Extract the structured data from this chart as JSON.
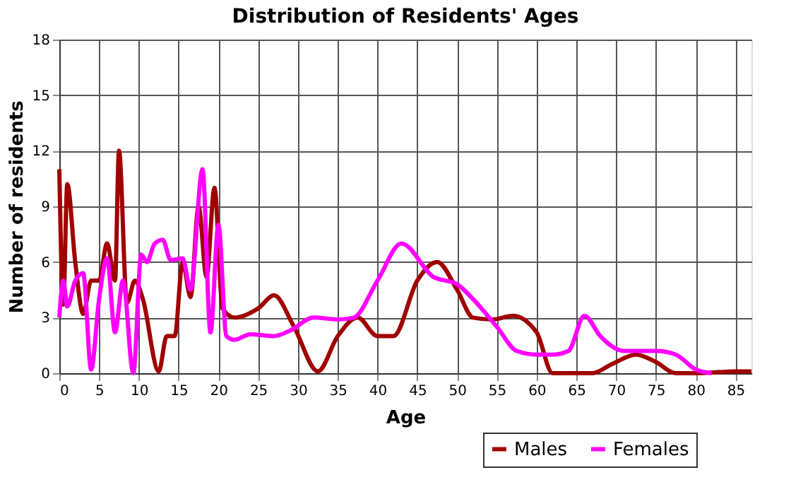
{
  "chart_data": {
    "type": "line",
    "title": "Distribution of Residents' Ages",
    "xlabel": "Age",
    "ylabel": "Number of residents",
    "xlim": [
      0,
      87
    ],
    "xticks": [
      0,
      5,
      10,
      15,
      20,
      25,
      30,
      35,
      40,
      45,
      50,
      55,
      60,
      65,
      70,
      75,
      80,
      85
    ],
    "ylim": [
      0,
      18
    ],
    "yticks": [
      0,
      3,
      6,
      9,
      12,
      15,
      18
    ],
    "grid": true,
    "legend": "bottom right",
    "line_style": "solid",
    "marker": "none",
    "series": [
      {
        "name": "Males",
        "color": "#a00000",
        "x": [
          0,
          0.5,
          1,
          2,
          3,
          4,
          5,
          6,
          7,
          7.5,
          8.5,
          9.5,
          10.5,
          12.5,
          13.5,
          14.5,
          15.5,
          16.5,
          17.5,
          18.5,
          19.5,
          20.5,
          22,
          25,
          27,
          29.5,
          32.5,
          35,
          37.5,
          40,
          42,
          45,
          47.5,
          50,
          52,
          54.5,
          57,
          60,
          62,
          65,
          67,
          69.5,
          72.5,
          75,
          77.5,
          80,
          85,
          87
        ],
        "values": [
          11,
          3.7,
          10.2,
          6,
          3.2,
          5,
          5,
          7,
          5,
          12,
          3.8,
          5,
          4,
          0.1,
          2,
          2,
          6,
          4.1,
          9,
          5.2,
          10,
          3.5,
          3,
          3.5,
          4.2,
          2.5,
          0.1,
          2,
          3,
          2,
          2,
          5,
          6,
          4.5,
          3,
          2.9,
          3.1,
          2.2,
          0,
          0,
          0,
          0.5,
          1,
          0.6,
          0,
          0,
          0.1,
          0.1
        ]
      },
      {
        "name": "Females",
        "color": "#ff00ff",
        "x": [
          0,
          0.5,
          1,
          2,
          3,
          4,
          5,
          6,
          7,
          8,
          9.3,
          10.3,
          11,
          12,
          13,
          14,
          15.5,
          16.5,
          18,
          19,
          20,
          21,
          22,
          24,
          27,
          29,
          32,
          35,
          37,
          40,
          43,
          47,
          50,
          52,
          55,
          57.5,
          60,
          62,
          64,
          66,
          68,
          71,
          75,
          77.5,
          80,
          82
        ],
        "values": [
          3,
          5,
          3.6,
          5,
          5.4,
          0.2,
          4,
          6.2,
          2.2,
          5,
          0,
          6.4,
          6,
          7,
          7.2,
          6.1,
          6.2,
          4.5,
          11,
          2.2,
          8,
          2,
          1.8,
          2.1,
          2,
          2.3,
          3,
          2.9,
          3,
          5,
          7,
          5.2,
          4.8,
          4,
          2.5,
          1.2,
          1,
          1,
          1.2,
          3.1,
          2,
          1.2,
          1.2,
          1,
          0.2,
          0
        ]
      }
    ]
  }
}
